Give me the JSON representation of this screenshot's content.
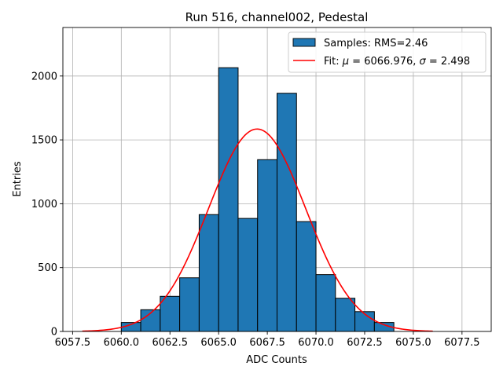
{
  "chart_data": {
    "type": "bar",
    "title": "Run 516, channel002, Pedestal",
    "xlabel": "ADC Counts",
    "ylabel": "Entries",
    "xlim": [
      6057.0,
      6079.0
    ],
    "ylim": [
      0,
      2380
    ],
    "grid": true,
    "legend_position": "top-right",
    "x_ticks": [
      6057.5,
      6060.0,
      6062.5,
      6065.0,
      6067.5,
      6070.0,
      6072.5,
      6075.0,
      6077.5
    ],
    "x_tick_labels": [
      "6057.5",
      "6060.0",
      "6062.5",
      "6065.0",
      "6067.5",
      "6070.0",
      "6072.5",
      "6075.0",
      "6077.5"
    ],
    "y_ticks": [
      0,
      500,
      1000,
      1500,
      2000
    ],
    "y_tick_labels": [
      "0",
      "500",
      "1000",
      "1500",
      "2000"
    ],
    "histogram": {
      "name": "Samples: RMS=2.46",
      "color": "#1f77b4",
      "edge_color": "#000000",
      "bin_edges": [
        6060,
        6061,
        6062,
        6063,
        6064,
        6065,
        6066,
        6067,
        6068,
        6069,
        6070,
        6071,
        6072,
        6073,
        6074
      ],
      "counts": [
        70,
        170,
        275,
        420,
        915,
        2065,
        885,
        1345,
        1865,
        860,
        445,
        260,
        155,
        70
      ]
    },
    "fit": {
      "label_prefix": "Fit: ",
      "mu_symbol": "μ",
      "mu_text": " = 6066.976, ",
      "sigma_symbol": "σ",
      "sigma_text": " = 2.498",
      "mu": 6066.976,
      "sigma": 2.498,
      "amplitude": 1585,
      "x_range": [
        6058.0,
        6076.0
      ],
      "color": "#ff0000"
    }
  }
}
